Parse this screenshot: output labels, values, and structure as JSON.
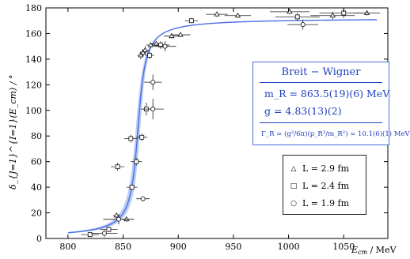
{
  "chart_data": {
    "type": "scatter",
    "xlabel": "E_cm / MeV",
    "xlabel_main": "E",
    "xlabel_sub": "cm",
    "xlabel_unit": " / MeV",
    "ylabel": "δ_{J=1}^{I=1}(E_cm) / °",
    "xlim": [
      780,
      1090
    ],
    "ylim": [
      0,
      180
    ],
    "xticks": [
      800,
      850,
      900,
      950,
      1000,
      1050
    ],
    "yticks": [
      0,
      20,
      40,
      60,
      80,
      100,
      120,
      140,
      160,
      180
    ],
    "grid": false,
    "fit": {
      "label": "Breit − Wigner",
      "m_R": "m_R = 863.5(19)(6) MeV",
      "g": "g = 4.83(13)(2)",
      "gamma": "Γ_R = (g²/6π)(p_R³/m_R²) = 10.1(6)(1) MeV",
      "mass": 863.5,
      "width": 10.1,
      "color": "#4a6fe6",
      "band_color": "#9fb7ef"
    },
    "legend": [
      {
        "marker": "triangle",
        "label": "L = 2.9 fm"
      },
      {
        "marker": "square",
        "label": "L = 2.4 fm"
      },
      {
        "marker": "circle",
        "label": "L = 1.9 fm"
      }
    ],
    "legend_position": "bottom-right",
    "series": [
      {
        "marker": "triangle",
        "points": [
          [
            844,
            18,
            3,
            2
          ],
          [
            853,
            15,
            4,
            2
          ],
          [
            866,
            143,
            3,
            3
          ],
          [
            868,
            145,
            3,
            3
          ],
          [
            870,
            147,
            3,
            3
          ],
          [
            875,
            151,
            4,
            2
          ],
          [
            880,
            152,
            5,
            2
          ],
          [
            894,
            158,
            7,
            2
          ],
          [
            902,
            159,
            9,
            2
          ],
          [
            935,
            175,
            10,
            2
          ],
          [
            954,
            174,
            12,
            2
          ],
          [
            1001,
            177,
            18,
            2
          ],
          [
            1040,
            174,
            20,
            3
          ],
          [
            1071,
            176,
            12,
            2
          ]
        ]
      },
      {
        "marker": "square",
        "points": [
          [
            820,
            3,
            8,
            2
          ],
          [
            837,
            7,
            8,
            2
          ],
          [
            845,
            56,
            6,
            3
          ],
          [
            858,
            40,
            5,
            2
          ],
          [
            857,
            78,
            6,
            3
          ],
          [
            862,
            60,
            5,
            3
          ],
          [
            867,
            79,
            5,
            3
          ],
          [
            871,
            101,
            5,
            5
          ],
          [
            874,
            143,
            4,
            3
          ],
          [
            884,
            151,
            8,
            3
          ],
          [
            912,
            170,
            6,
            2
          ],
          [
            1008,
            173,
            20,
            3
          ],
          [
            1050,
            176,
            22,
            4
          ]
        ]
      },
      {
        "marker": "circle",
        "points": [
          [
            833,
            4,
            12,
            3
          ],
          [
            846,
            15,
            14,
            4
          ],
          [
            868,
            31,
            6,
            2
          ],
          [
            877,
            101,
            10,
            8
          ],
          [
            877,
            122,
            8,
            6
          ],
          [
            888,
            150,
            10,
            4
          ],
          [
            1013,
            167,
            14,
            4
          ]
        ]
      }
    ]
  }
}
